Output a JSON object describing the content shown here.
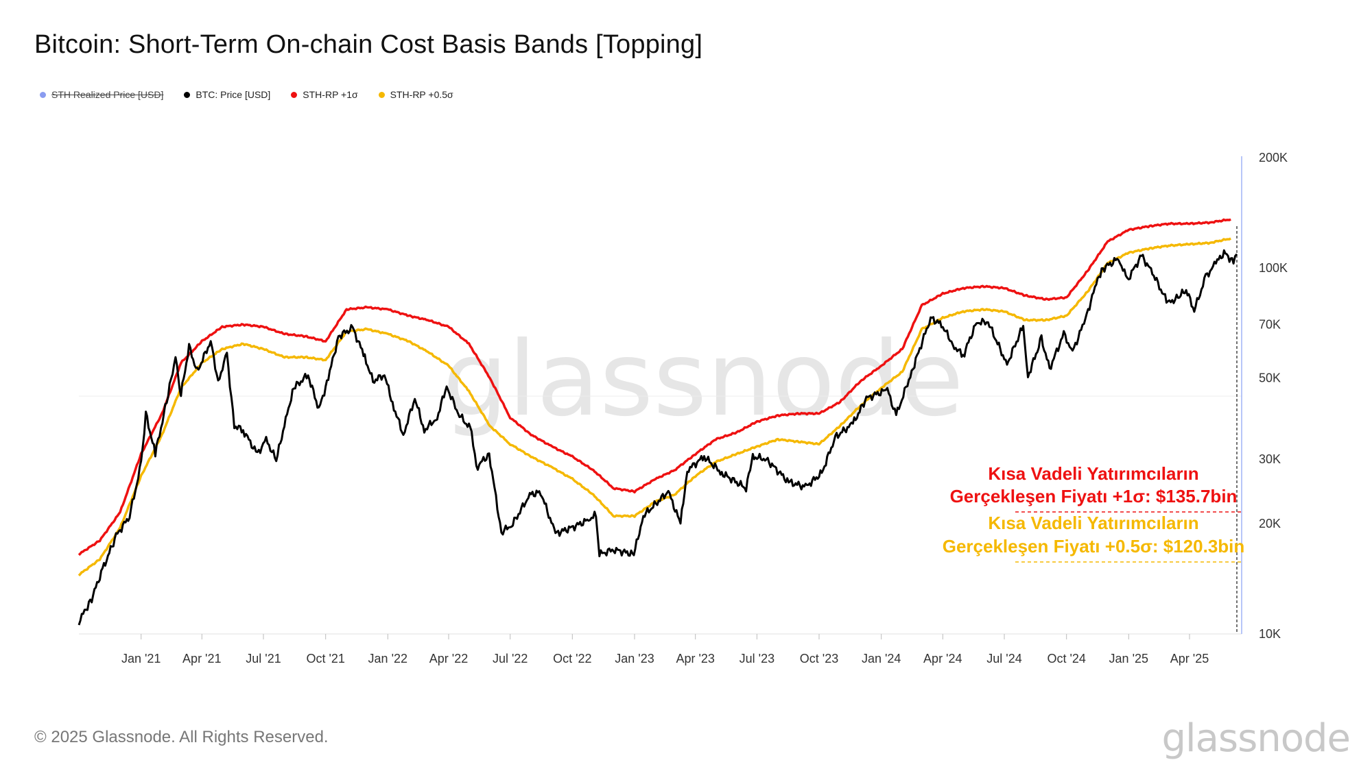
{
  "header": {
    "title": "Bitcoin: Short-Term On-chain Cost Basis Bands [Topping]"
  },
  "legend": [
    {
      "label": "STH Realized Price [USD]",
      "color": "#8a9cf0",
      "disabled": true
    },
    {
      "label": "BTC: Price [USD]",
      "color": "#000000",
      "disabled": false
    },
    {
      "label": "STH-RP +1σ",
      "color": "#ee1111",
      "disabled": false
    },
    {
      "label": "STH-RP +0.5σ",
      "color": "#f5b800",
      "disabled": false
    }
  ],
  "chart_data": {
    "type": "line",
    "y_scale": "log",
    "ylim": [
      10000,
      200000
    ],
    "y_ticks": [
      {
        "value": 200000,
        "label": "200K"
      },
      {
        "value": 100000,
        "label": "100K"
      },
      {
        "value": 70000,
        "label": "70K"
      },
      {
        "value": 50000,
        "label": "50K"
      },
      {
        "value": 30000,
        "label": "30K"
      },
      {
        "value": 20000,
        "label": "20K"
      },
      {
        "value": 10000,
        "label": "10K"
      }
    ],
    "x_range": [
      "2020-10-01",
      "2025-06-10"
    ],
    "x_ticks": [
      {
        "date": "2021-01-01",
        "label": "Jan '21"
      },
      {
        "date": "2021-04-01",
        "label": "Apr '21"
      },
      {
        "date": "2021-07-01",
        "label": "Jul '21"
      },
      {
        "date": "2021-10-01",
        "label": "Oct '21"
      },
      {
        "date": "2022-01-01",
        "label": "Jan '22"
      },
      {
        "date": "2022-04-01",
        "label": "Apr '22"
      },
      {
        "date": "2022-07-01",
        "label": "Jul '22"
      },
      {
        "date": "2022-10-01",
        "label": "Oct '22"
      },
      {
        "date": "2023-01-01",
        "label": "Jan '23"
      },
      {
        "date": "2023-04-01",
        "label": "Apr '23"
      },
      {
        "date": "2023-07-01",
        "label": "Jul '23"
      },
      {
        "date": "2023-10-01",
        "label": "Oct '23"
      },
      {
        "date": "2024-01-01",
        "label": "Jan '24"
      },
      {
        "date": "2024-04-01",
        "label": "Apr '24"
      },
      {
        "date": "2024-07-01",
        "label": "Jul '24"
      },
      {
        "date": "2024-10-01",
        "label": "Oct '24"
      },
      {
        "date": "2025-01-01",
        "label": "Jan '25"
      },
      {
        "date": "2025-04-01",
        "label": "Apr '25"
      }
    ],
    "series": [
      {
        "name": "STH-RP +1σ",
        "color": "#ee1111",
        "points": [
          [
            "2020-10-01",
            16500
          ],
          [
            "2020-11-01",
            18000
          ],
          [
            "2020-12-01",
            21500
          ],
          [
            "2021-01-01",
            31000
          ],
          [
            "2021-02-01",
            40000
          ],
          [
            "2021-03-01",
            55000
          ],
          [
            "2021-04-01",
            63000
          ],
          [
            "2021-05-01",
            69000
          ],
          [
            "2021-06-01",
            70000
          ],
          [
            "2021-07-01",
            69000
          ],
          [
            "2021-08-01",
            66000
          ],
          [
            "2021-09-01",
            65000
          ],
          [
            "2021-10-01",
            63000
          ],
          [
            "2021-11-01",
            77000
          ],
          [
            "2021-12-01",
            78000
          ],
          [
            "2022-01-01",
            77000
          ],
          [
            "2022-02-01",
            74000
          ],
          [
            "2022-03-01",
            72000
          ],
          [
            "2022-04-01",
            69000
          ],
          [
            "2022-05-01",
            62000
          ],
          [
            "2022-06-01",
            50000
          ],
          [
            "2022-07-01",
            39000
          ],
          [
            "2022-08-01",
            35000
          ],
          [
            "2022-09-01",
            32500
          ],
          [
            "2022-10-01",
            30500
          ],
          [
            "2022-11-01",
            28000
          ],
          [
            "2022-12-01",
            25000
          ],
          [
            "2023-01-01",
            24500
          ],
          [
            "2023-02-01",
            26500
          ],
          [
            "2023-03-01",
            28000
          ],
          [
            "2023-04-01",
            31000
          ],
          [
            "2023-05-01",
            34000
          ],
          [
            "2023-06-01",
            35500
          ],
          [
            "2023-07-01",
            38000
          ],
          [
            "2023-08-01",
            39500
          ],
          [
            "2023-09-01",
            40000
          ],
          [
            "2023-10-01",
            40000
          ],
          [
            "2023-11-01",
            43000
          ],
          [
            "2023-12-01",
            49000
          ],
          [
            "2024-01-01",
            54000
          ],
          [
            "2024-02-01",
            60000
          ],
          [
            "2024-03-01",
            79000
          ],
          [
            "2024-04-01",
            85000
          ],
          [
            "2024-05-01",
            88000
          ],
          [
            "2024-06-01",
            89000
          ],
          [
            "2024-07-01",
            88000
          ],
          [
            "2024-08-01",
            84000
          ],
          [
            "2024-09-01",
            82000
          ],
          [
            "2024-10-01",
            83000
          ],
          [
            "2024-11-01",
            98000
          ],
          [
            "2024-12-01",
            118000
          ],
          [
            "2025-01-01",
            127000
          ],
          [
            "2025-02-01",
            130000
          ],
          [
            "2025-03-01",
            132000
          ],
          [
            "2025-04-01",
            132000
          ],
          [
            "2025-05-01",
            133000
          ],
          [
            "2025-06-01",
            135700
          ]
        ]
      },
      {
        "name": "STH-RP +0.5σ",
        "color": "#f5b800",
        "points": [
          [
            "2020-10-01",
            14500
          ],
          [
            "2020-11-01",
            16000
          ],
          [
            "2020-12-01",
            19500
          ],
          [
            "2021-01-01",
            27000
          ],
          [
            "2021-02-01",
            35000
          ],
          [
            "2021-03-01",
            47000
          ],
          [
            "2021-04-01",
            55000
          ],
          [
            "2021-05-01",
            60000
          ],
          [
            "2021-06-01",
            62000
          ],
          [
            "2021-07-01",
            60000
          ],
          [
            "2021-08-01",
            57000
          ],
          [
            "2021-09-01",
            57000
          ],
          [
            "2021-10-01",
            56000
          ],
          [
            "2021-11-01",
            67000
          ],
          [
            "2021-12-01",
            68000
          ],
          [
            "2022-01-01",
            66000
          ],
          [
            "2022-02-01",
            63000
          ],
          [
            "2022-03-01",
            59000
          ],
          [
            "2022-04-01",
            54000
          ],
          [
            "2022-05-01",
            46000
          ],
          [
            "2022-06-01",
            37000
          ],
          [
            "2022-07-01",
            33000
          ],
          [
            "2022-08-01",
            30500
          ],
          [
            "2022-09-01",
            28500
          ],
          [
            "2022-10-01",
            26500
          ],
          [
            "2022-11-01",
            24000
          ],
          [
            "2022-12-01",
            21000
          ],
          [
            "2023-01-01",
            21000
          ],
          [
            "2023-02-01",
            23000
          ],
          [
            "2023-03-01",
            24000
          ],
          [
            "2023-04-01",
            27000
          ],
          [
            "2023-05-01",
            29500
          ],
          [
            "2023-06-01",
            31000
          ],
          [
            "2023-07-01",
            32500
          ],
          [
            "2023-08-01",
            34000
          ],
          [
            "2023-09-01",
            33500
          ],
          [
            "2023-10-01",
            33000
          ],
          [
            "2023-11-01",
            37000
          ],
          [
            "2023-12-01",
            42000
          ],
          [
            "2024-01-01",
            47000
          ],
          [
            "2024-02-01",
            52000
          ],
          [
            "2024-03-01",
            68000
          ],
          [
            "2024-04-01",
            73000
          ],
          [
            "2024-05-01",
            76000
          ],
          [
            "2024-06-01",
            77000
          ],
          [
            "2024-07-01",
            76000
          ],
          [
            "2024-08-01",
            72000
          ],
          [
            "2024-09-01",
            72000
          ],
          [
            "2024-10-01",
            74000
          ],
          [
            "2024-11-01",
            86000
          ],
          [
            "2024-12-01",
            103000
          ],
          [
            "2025-01-01",
            110000
          ],
          [
            "2025-02-01",
            113000
          ],
          [
            "2025-03-01",
            115000
          ],
          [
            "2025-04-01",
            116000
          ],
          [
            "2025-05-01",
            117000
          ],
          [
            "2025-06-01",
            120300
          ]
        ]
      },
      {
        "name": "BTC: Price [USD]",
        "color": "#000000",
        "points": [
          [
            "2020-10-01",
            10800
          ],
          [
            "2020-10-20",
            12500
          ],
          [
            "2020-11-05",
            15000
          ],
          [
            "2020-11-25",
            18500
          ],
          [
            "2020-12-15",
            21000
          ],
          [
            "2021-01-01",
            29000
          ],
          [
            "2021-01-08",
            40000
          ],
          [
            "2021-01-22",
            31000
          ],
          [
            "2021-02-10",
            45000
          ],
          [
            "2021-02-21",
            57000
          ],
          [
            "2021-03-01",
            45000
          ],
          [
            "2021-03-13",
            61000
          ],
          [
            "2021-03-25",
            52000
          ],
          [
            "2021-04-14",
            63000
          ],
          [
            "2021-04-25",
            49000
          ],
          [
            "2021-05-08",
            58000
          ],
          [
            "2021-05-19",
            37000
          ],
          [
            "2021-06-01",
            36000
          ],
          [
            "2021-06-22",
            31000
          ],
          [
            "2021-07-05",
            34000
          ],
          [
            "2021-07-20",
            29800
          ],
          [
            "2021-08-05",
            40000
          ],
          [
            "2021-08-15",
            47000
          ],
          [
            "2021-09-05",
            51000
          ],
          [
            "2021-09-21",
            41000
          ],
          [
            "2021-10-05",
            50000
          ],
          [
            "2021-10-20",
            65000
          ],
          [
            "2021-11-10",
            68500
          ],
          [
            "2021-11-28",
            57000
          ],
          [
            "2021-12-10",
            49000
          ],
          [
            "2021-12-27",
            51000
          ],
          [
            "2022-01-10",
            41500
          ],
          [
            "2022-01-24",
            35000
          ],
          [
            "2022-02-10",
            44000
          ],
          [
            "2022-02-24",
            36000
          ],
          [
            "2022-03-15",
            39000
          ],
          [
            "2022-03-29",
            47500
          ],
          [
            "2022-04-15",
            40000
          ],
          [
            "2022-05-05",
            36000
          ],
          [
            "2022-05-12",
            28500
          ],
          [
            "2022-05-31",
            31000
          ],
          [
            "2022-06-18",
            18900
          ],
          [
            "2022-07-05",
            20000
          ],
          [
            "2022-07-30",
            24000
          ],
          [
            "2022-08-15",
            24400
          ],
          [
            "2022-09-06",
            18800
          ],
          [
            "2022-09-30",
            19500
          ],
          [
            "2022-10-25",
            20500
          ],
          [
            "2022-11-05",
            21300
          ],
          [
            "2022-11-10",
            16500
          ],
          [
            "2022-12-01",
            17000
          ],
          [
            "2022-12-31",
            16500
          ],
          [
            "2023-01-14",
            21000
          ],
          [
            "2023-02-20",
            24500
          ],
          [
            "2023-03-10",
            20000
          ],
          [
            "2023-03-20",
            28000
          ],
          [
            "2023-04-14",
            30500
          ],
          [
            "2023-05-10",
            27500
          ],
          [
            "2023-06-15",
            25000
          ],
          [
            "2023-06-25",
            30500
          ],
          [
            "2023-07-15",
            30000
          ],
          [
            "2023-08-17",
            26000
          ],
          [
            "2023-09-11",
            25200
          ],
          [
            "2023-10-05",
            27500
          ],
          [
            "2023-10-25",
            34500
          ],
          [
            "2023-11-20",
            37500
          ],
          [
            "2023-12-10",
            44000
          ],
          [
            "2024-01-10",
            46500
          ],
          [
            "2024-01-23",
            39500
          ],
          [
            "2024-02-15",
            52000
          ],
          [
            "2024-03-14",
            73000
          ],
          [
            "2024-03-30",
            70000
          ],
          [
            "2024-04-18",
            61000
          ],
          [
            "2024-05-01",
            57500
          ],
          [
            "2024-05-21",
            71000
          ],
          [
            "2024-06-07",
            71000
          ],
          [
            "2024-07-05",
            54500
          ],
          [
            "2024-07-29",
            69500
          ],
          [
            "2024-08-05",
            50500
          ],
          [
            "2024-08-25",
            64000
          ],
          [
            "2024-09-06",
            53000
          ],
          [
            "2024-09-27",
            66000
          ],
          [
            "2024-10-10",
            59000
          ],
          [
            "2024-10-29",
            72500
          ],
          [
            "2024-11-12",
            88000
          ],
          [
            "2024-11-22",
            99000
          ],
          [
            "2024-12-17",
            106000
          ],
          [
            "2024-12-30",
            92500
          ],
          [
            "2025-01-20",
            108000
          ],
          [
            "2025-02-05",
            97000
          ],
          [
            "2025-02-28",
            80000
          ],
          [
            "2025-03-15",
            83000
          ],
          [
            "2025-03-27",
            87000
          ],
          [
            "2025-04-08",
            76500
          ],
          [
            "2025-04-25",
            94500
          ],
          [
            "2025-05-10",
            103000
          ],
          [
            "2025-05-22",
            110000
          ],
          [
            "2025-06-05",
            104000
          ],
          [
            "2025-06-10",
            109000
          ]
        ]
      }
    ],
    "annotations": [
      {
        "lines": [
          "Kısa Vadeli Yatırımcıların",
          "Gerçekleşen Fiyatı +1σ: $135.7bin"
        ],
        "color": "#ee1111"
      },
      {
        "lines": [
          "Kısa Vadeli Yatırımcıların",
          "Gerçekleşen Fiyatı  +0.5σ: $120.3bin"
        ],
        "color": "#f5b800"
      }
    ],
    "watermark": "glassnode"
  },
  "footer": {
    "copyright": "© 2025 Glassnode. All Rights Reserved.",
    "brand": "glassnode"
  }
}
